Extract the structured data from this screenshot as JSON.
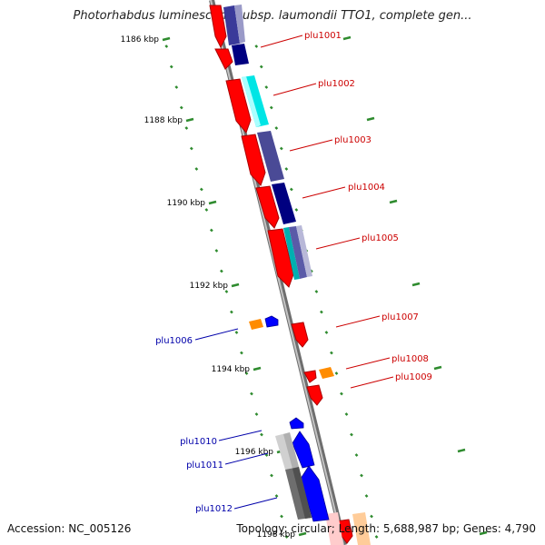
{
  "title": "Photorhabdus luminescens subsp. laumondii TTO1, complete gen...",
  "footer": {
    "accession": "Accession: NC_005126",
    "summary": "Topology: circular; Length: 5,688,987 bp; Genes: 4,790"
  },
  "colors": {
    "forward_label": "#cc0000",
    "reverse_label": "#0000aa",
    "backbone": "#8c8c8c",
    "tick": "#2e8b2e"
  },
  "ticks": [
    "1186 kbp",
    "1188 kbp",
    "1190 kbp",
    "1192 kbp",
    "1194 kbp",
    "1196 kbp",
    "1198 kbp"
  ],
  "genes_forward": [
    "plu1001",
    "plu1002",
    "plu1003",
    "plu1004",
    "plu1005",
    "plu1007",
    "plu1008",
    "plu1009"
  ],
  "genes_reverse": [
    "plu1006",
    "plu1010",
    "plu1011",
    "plu1012"
  ]
}
